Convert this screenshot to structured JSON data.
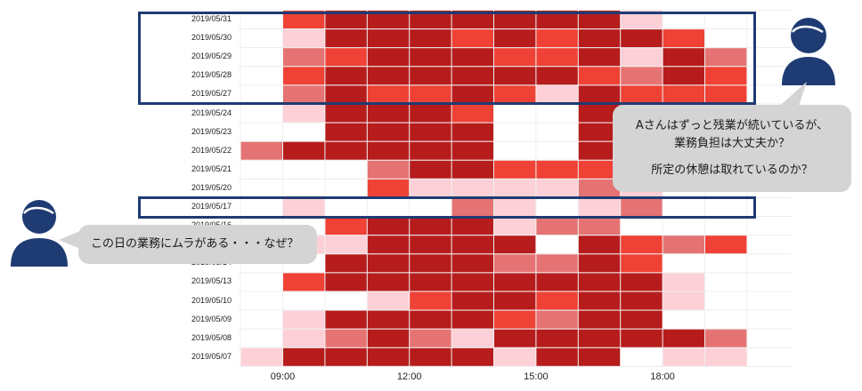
{
  "chart_data": {
    "type": "heatmap",
    "rows": [
      "2019/05/31",
      "2019/05/30",
      "2019/05/29",
      "2019/05/28",
      "2019/05/27",
      "2019/05/24",
      "2019/05/23",
      "2019/05/22",
      "2019/05/21",
      "2019/05/20",
      "2019/05/17",
      "2019/05/16",
      "2019/05/15",
      "2019/05/14",
      "2019/05/13",
      "2019/05/10",
      "2019/05/09",
      "2019/05/08",
      "2019/05/07"
    ],
    "x_tick_labels": [
      "09:00",
      "12:00",
      "15:00",
      "18:00"
    ],
    "x_ticks_hours": [
      9,
      12,
      15,
      18
    ],
    "x_range_hours": [
      8,
      20
    ],
    "intensity_scale": "0 = none, 1 = light pink, 2 = pink, 3 = red, 4 = dark red",
    "colors": {
      "1": "#fcd0d6",
      "2": "#e57373",
      "3": "#ef4135",
      "4": "#b71c1c"
    },
    "cells": [
      {
        "row": "2019/05/31",
        "hour_start": 9,
        "values": [
          3,
          4,
          4,
          4,
          4,
          4,
          4,
          4,
          1,
          0,
          0
        ]
      },
      {
        "row": "2019/05/30",
        "hour_start": 9,
        "values": [
          1,
          4,
          4,
          4,
          3,
          4,
          3,
          4,
          4,
          3,
          0
        ]
      },
      {
        "row": "2019/05/29",
        "hour_start": 9,
        "values": [
          2,
          3,
          4,
          4,
          4,
          3,
          3,
          4,
          1,
          4,
          2
        ]
      },
      {
        "row": "2019/05/28",
        "hour_start": 9,
        "values": [
          3,
          4,
          4,
          4,
          4,
          4,
          4,
          3,
          2,
          4,
          3
        ]
      },
      {
        "row": "2019/05/27",
        "hour_start": 9,
        "values": [
          2,
          4,
          3,
          3,
          4,
          3,
          1,
          4,
          3,
          3,
          3
        ]
      },
      {
        "row": "2019/05/24",
        "hour_start": 9,
        "values": [
          1,
          4,
          4,
          4,
          3,
          0,
          0,
          4,
          4,
          0,
          0
        ]
      },
      {
        "row": "2019/05/23",
        "hour_start": 9,
        "values": [
          0,
          4,
          4,
          4,
          4,
          0,
          0,
          4,
          4,
          0,
          0
        ]
      },
      {
        "row": "2019/05/22",
        "hour_start": 8,
        "values": [
          2,
          4,
          4,
          4,
          4,
          4,
          0,
          0,
          4,
          4,
          0,
          0
        ]
      },
      {
        "row": "2019/05/21",
        "hour_start": 9,
        "values": [
          0,
          0,
          2,
          4,
          4,
          3,
          3,
          3,
          4,
          0,
          0
        ]
      },
      {
        "row": "2019/05/20",
        "hour_start": 9,
        "values": [
          0,
          0,
          3,
          1,
          1,
          1,
          1,
          2,
          1,
          0,
          0
        ]
      },
      {
        "row": "2019/05/17",
        "hour_start": 9,
        "values": [
          1,
          0,
          0,
          0,
          2,
          1,
          0,
          1,
          2,
          0,
          0
        ]
      },
      {
        "row": "2019/05/16",
        "hour_start": 9,
        "values": [
          0,
          3,
          4,
          4,
          4,
          1,
          2,
          2,
          0,
          0,
          0
        ]
      },
      {
        "row": "2019/05/15",
        "hour_start": 9,
        "values": [
          1,
          1,
          4,
          4,
          4,
          4,
          0,
          4,
          3,
          2,
          3
        ]
      },
      {
        "row": "2019/05/14",
        "hour_start": 9,
        "values": [
          0,
          4,
          4,
          4,
          4,
          2,
          2,
          4,
          3,
          0,
          0
        ]
      },
      {
        "row": "2019/05/13",
        "hour_start": 9,
        "values": [
          3,
          4,
          4,
          4,
          4,
          4,
          4,
          4,
          4,
          1,
          0
        ]
      },
      {
        "row": "2019/05/10",
        "hour_start": 9,
        "values": [
          0,
          0,
          1,
          3,
          4,
          4,
          3,
          4,
          4,
          1,
          0
        ]
      },
      {
        "row": "2019/05/09",
        "hour_start": 9,
        "values": [
          1,
          4,
          4,
          4,
          4,
          3,
          2,
          4,
          4,
          0,
          0
        ]
      },
      {
        "row": "2019/05/08",
        "hour_start": 9,
        "values": [
          1,
          2,
          4,
          2,
          1,
          4,
          4,
          4,
          4,
          4,
          2
        ]
      },
      {
        "row": "2019/05/07",
        "hour_start": 8,
        "values": [
          1,
          4,
          4,
          4,
          4,
          4,
          1,
          4,
          4,
          0,
          1,
          1
        ]
      }
    ]
  },
  "annotations": {
    "bubble_right_line1": "Aさんはずっと残業が続いているが、",
    "bubble_right_line2": "業務負担は大丈夫か？",
    "bubble_right_line3": "所定の休憩は取れているのか？",
    "bubble_left_text": "この日の業務にムラがある・・・なぜ？",
    "highlight_color": "#1f3b73",
    "person_color": "#1f3b73"
  }
}
